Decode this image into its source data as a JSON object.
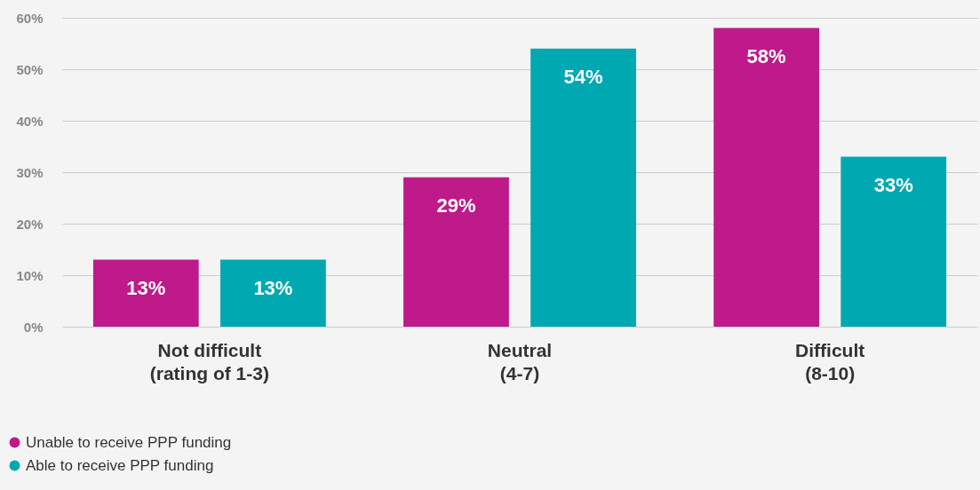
{
  "chart_data": {
    "type": "bar",
    "categories": [
      "Not difficult\n(rating of 1-3)",
      "Neutral\n(4-7)",
      "Difficult\n(8-10)"
    ],
    "series": [
      {
        "name": "Unable to receive PPP funding",
        "color": "#be1a8a",
        "values": [
          13,
          29,
          58
        ],
        "value_labels": [
          "13%",
          "29%",
          "58%"
        ]
      },
      {
        "name": "Able to receive PPP funding",
        "color": "#00a8b1",
        "values": [
          13,
          54,
          33
        ],
        "value_labels": [
          "13%",
          "54%",
          "33%"
        ]
      }
    ],
    "ylim": [
      0,
      60
    ],
    "yticks": [
      {
        "value": 0,
        "label": "0%"
      },
      {
        "value": 10,
        "label": "10%"
      },
      {
        "value": 20,
        "label": "20%"
      },
      {
        "value": 30,
        "label": "30%"
      },
      {
        "value": 40,
        "label": "40%"
      },
      {
        "value": 50,
        "label": "50%"
      },
      {
        "value": 60,
        "label": "60%"
      }
    ],
    "grid": "y",
    "legend": "bottom left"
  }
}
